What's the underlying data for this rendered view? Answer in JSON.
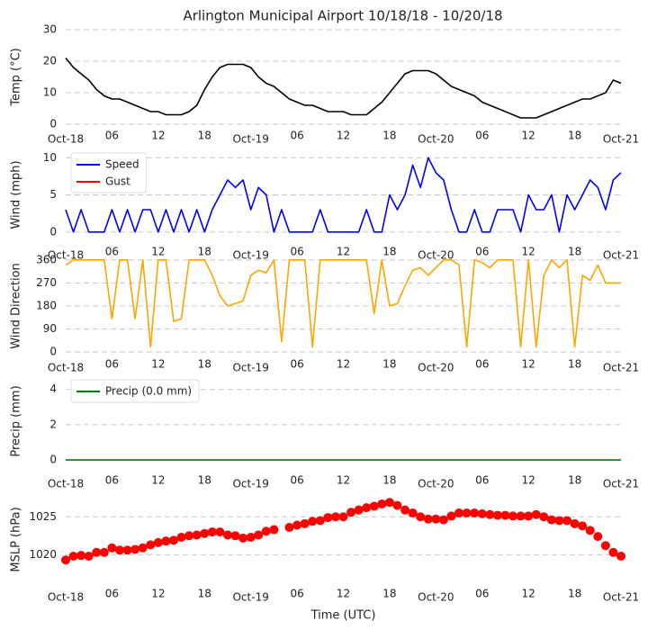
{
  "chart_data": [
    {
      "type": "line",
      "title": "Arlington Municipal Airport 10/18/18 - 10/20/18",
      "ylabel": "Temp ($^\\circ$C)",
      "xlim": [
        0,
        72
      ],
      "xticks": [
        {
          "value": 0,
          "label": "Oct-18"
        },
        {
          "value": 6,
          "label": "06"
        },
        12,
        18,
        {
          "value": 24,
          "label": "Oct-19"
        },
        {
          "value": 30,
          "label": "06"
        },
        {
          "value": 36,
          "label": "12"
        },
        {
          "value": 42,
          "label": "18"
        },
        {
          "value": 48,
          "label": "Oct-20"
        },
        {
          "value": 54,
          "label": "06"
        },
        {
          "value": 60,
          "label": "12"
        },
        {
          "value": 66,
          "label": "18"
        },
        {
          "value": 72,
          "label": "Oct-21"
        }
      ],
      "ylim": [
        0,
        30
      ],
      "yticks": [
        0,
        10,
        20,
        30
      ],
      "grid": true,
      "x": [
        0,
        1,
        2,
        3,
        4,
        5,
        6,
        7,
        8,
        9,
        10,
        11,
        12,
        13,
        14,
        15,
        16,
        17,
        18,
        19,
        20,
        21,
        22,
        23,
        24,
        25,
        26,
        27,
        28,
        29,
        30,
        31,
        32,
        33,
        34,
        35,
        36,
        37,
        38,
        39,
        40,
        41,
        42,
        43,
        44,
        45,
        46,
        47,
        48,
        49,
        50,
        51,
        52,
        53,
        54,
        55,
        56,
        57,
        58,
        59,
        60,
        61,
        62,
        63,
        64,
        65,
        66,
        67,
        68,
        69,
        70,
        71,
        72
      ],
      "series": [
        {
          "color": "#000000",
          "values": [
            21,
            18,
            16,
            14,
            11,
            9,
            8,
            8,
            7,
            6,
            5,
            4,
            4,
            3,
            3,
            3,
            4,
            6,
            11,
            15,
            18,
            19,
            19,
            19,
            18,
            15,
            13,
            12,
            10,
            8,
            7,
            6,
            6,
            5,
            4,
            4,
            4,
            3,
            3,
            3,
            5,
            7,
            10,
            13,
            16,
            17,
            17,
            17,
            16,
            14,
            12,
            11,
            10,
            9,
            7,
            6,
            5,
            4,
            3,
            2,
            2,
            2,
            3,
            4,
            5,
            6,
            7,
            8,
            8,
            9,
            10,
            14,
            13
          ]
        }
      ]
    },
    {
      "type": "line",
      "ylabel": "Wind (mph)",
      "legend": "upper left",
      "xlim": [
        0,
        72
      ],
      "xticks": [
        {
          "value": 0,
          "label": "Oct-18"
        },
        {
          "value": 6,
          "label": "06"
        },
        12,
        18,
        {
          "value": 24,
          "label": "Oct-19"
        },
        {
          "value": 30,
          "label": "06"
        },
        {
          "value": 36,
          "label": "12"
        },
        {
          "value": 42,
          "label": "18"
        },
        {
          "value": 48,
          "label": "Oct-20"
        },
        {
          "value": 54,
          "label": "06"
        },
        {
          "value": 60,
          "label": "12"
        },
        {
          "value": 66,
          "label": "18"
        },
        {
          "value": 72,
          "label": "Oct-21"
        }
      ],
      "ylim": [
        -1,
        11
      ],
      "yticks": [
        0,
        5,
        10
      ],
      "grid": true,
      "x": [
        0,
        1,
        2,
        3,
        4,
        5,
        6,
        7,
        8,
        9,
        10,
        11,
        12,
        13,
        14,
        15,
        16,
        17,
        18,
        19,
        20,
        21,
        22,
        23,
        24,
        25,
        26,
        27,
        28,
        29,
        30,
        31,
        32,
        33,
        34,
        35,
        36,
        37,
        38,
        39,
        40,
        41,
        42,
        43,
        44,
        45,
        46,
        47,
        48,
        49,
        50,
        51,
        52,
        53,
        54,
        55,
        56,
        57,
        58,
        59,
        60,
        61,
        62,
        63,
        64,
        65,
        66,
        67,
        68,
        69,
        70,
        71,
        72
      ],
      "series": [
        {
          "name": "Speed",
          "color": "#0000ff",
          "values": [
            3,
            0,
            3,
            0,
            0,
            0,
            3,
            0,
            3,
            0,
            3,
            3,
            0,
            3,
            0,
            3,
            0,
            3,
            0,
            3,
            5,
            7,
            6,
            7,
            3,
            6,
            5,
            0,
            3,
            0,
            0,
            0,
            0,
            3,
            0,
            0,
            0,
            0,
            0,
            3,
            0,
            0,
            5,
            3,
            5,
            9,
            6,
            10,
            8,
            7,
            3,
            0,
            0,
            3,
            0,
            0,
            3,
            3,
            3,
            0,
            5,
            3,
            3,
            5,
            0,
            5,
            3,
            5,
            7,
            6,
            3,
            7,
            8
          ]
        },
        {
          "name": "Gust",
          "color": "#ff0000",
          "values": [
            null,
            null,
            null,
            null,
            null,
            null,
            null,
            null,
            null,
            null,
            null,
            null,
            null,
            null,
            null,
            null,
            null,
            null,
            null,
            null,
            null,
            null,
            null,
            null,
            null,
            null,
            null,
            null,
            null,
            null,
            null,
            null,
            null,
            null,
            null,
            null,
            null,
            null,
            null,
            null,
            null,
            null,
            null,
            null,
            null,
            null,
            null,
            null,
            null,
            null,
            null,
            null,
            null,
            null,
            null,
            null,
            null,
            null,
            null,
            null,
            null,
            null,
            null,
            null,
            null,
            null,
            null,
            null,
            null,
            null,
            null,
            null,
            null
          ]
        }
      ]
    },
    {
      "type": "line",
      "ylabel": "Wind Direction",
      "xlim": [
        0,
        72
      ],
      "xticks": [
        {
          "value": 0,
          "label": "Oct-18"
        },
        {
          "value": 6,
          "label": "06"
        },
        12,
        18,
        {
          "value": 24,
          "label": "Oct-19"
        },
        {
          "value": 30,
          "label": "06"
        },
        {
          "value": 36,
          "label": "12"
        },
        {
          "value": 42,
          "label": "18"
        },
        {
          "value": 48,
          "label": "Oct-20"
        },
        {
          "value": 54,
          "label": "06"
        },
        {
          "value": 60,
          "label": "12"
        },
        {
          "value": 66,
          "label": "18"
        },
        {
          "value": 72,
          "label": "Oct-21"
        }
      ],
      "ylim": [
        -10,
        370
      ],
      "yticks": [
        0,
        90,
        180,
        270,
        360
      ],
      "grid": true,
      "x": [
        0,
        1,
        2,
        3,
        4,
        5,
        6,
        7,
        8,
        9,
        10,
        11,
        12,
        13,
        14,
        15,
        16,
        17,
        18,
        19,
        20,
        21,
        22,
        23,
        24,
        25,
        26,
        27,
        28,
        29,
        30,
        31,
        32,
        33,
        34,
        35,
        36,
        37,
        38,
        39,
        40,
        41,
        42,
        43,
        44,
        45,
        46,
        47,
        48,
        49,
        50,
        51,
        52,
        53,
        54,
        55,
        56,
        57,
        58,
        59,
        60,
        61,
        62,
        63,
        64,
        65,
        66,
        67,
        68,
        69,
        70,
        71,
        72
      ],
      "series": [
        {
          "color": "#ffa500",
          "values": [
            340,
            360,
            360,
            360,
            360,
            360,
            130,
            360,
            360,
            130,
            360,
            20,
            360,
            360,
            120,
            130,
            360,
            360,
            360,
            300,
            220,
            180,
            190,
            200,
            300,
            320,
            310,
            360,
            40,
            360,
            360,
            360,
            20,
            360,
            360,
            360,
            360,
            360,
            360,
            360,
            150,
            360,
            180,
            190,
            260,
            320,
            330,
            300,
            330,
            360,
            360,
            340,
            20,
            360,
            350,
            330,
            360,
            360,
            360,
            20,
            360,
            20,
            300,
            360,
            330,
            360,
            20,
            300,
            280,
            340,
            270,
            270,
            270
          ]
        }
      ]
    },
    {
      "type": "line",
      "ylabel": "Precip (mm)",
      "legend": "upper left",
      "xlim": [
        0,
        72
      ],
      "xticks": [
        {
          "value": 0,
          "label": "Oct-18"
        },
        {
          "value": 6,
          "label": "06"
        },
        12,
        18,
        {
          "value": 24,
          "label": "Oct-19"
        },
        {
          "value": 30,
          "label": "06"
        },
        {
          "value": 36,
          "label": "12"
        },
        {
          "value": 42,
          "label": "18"
        },
        {
          "value": 48,
          "label": "Oct-20"
        },
        {
          "value": 54,
          "label": "06"
        },
        {
          "value": 60,
          "label": "12"
        },
        {
          "value": 66,
          "label": "18"
        },
        {
          "value": 72,
          "label": "Oct-21"
        }
      ],
      "ylim": [
        -0.3,
        4.7
      ],
      "yticks": [
        0,
        2,
        4
      ],
      "grid": true,
      "x": [
        0,
        1,
        2,
        3,
        4,
        5,
        6,
        7,
        8,
        9,
        10,
        11,
        12,
        13,
        14,
        15,
        16,
        17,
        18,
        19,
        20,
        21,
        22,
        23,
        24,
        25,
        26,
        27,
        28,
        29,
        30,
        31,
        32,
        33,
        34,
        35,
        36,
        37,
        38,
        39,
        40,
        41,
        42,
        43,
        44,
        45,
        46,
        47,
        48,
        49,
        50,
        51,
        52,
        53,
        54,
        55,
        56,
        57,
        58,
        59,
        60,
        61,
        62,
        63,
        64,
        65,
        66,
        67,
        68,
        69,
        70,
        71,
        72
      ],
      "series": [
        {
          "name": "Precip (0.0 mm)",
          "color": "#008000",
          "values": [
            0,
            0,
            0,
            0,
            0,
            0,
            0,
            0,
            0,
            0,
            0,
            0,
            0,
            0,
            0,
            0,
            0,
            0,
            0,
            0,
            0,
            0,
            0,
            0,
            0,
            0,
            0,
            0,
            0,
            0,
            0,
            0,
            0,
            0,
            0,
            0,
            0,
            0,
            0,
            0,
            0,
            0,
            0,
            0,
            0,
            0,
            0,
            0,
            0,
            0,
            0,
            0,
            0,
            0,
            0,
            0,
            0,
            0,
            0,
            0,
            0,
            0,
            0,
            0,
            0,
            0,
            0,
            0,
            0,
            0,
            0,
            0,
            0
          ]
        }
      ]
    },
    {
      "type": "scatter",
      "ylabel": "MSLP (hPa)",
      "xlabel": "Time (UTC)",
      "xlim": [
        0,
        72
      ],
      "xticks": [
        {
          "value": 0,
          "label": "Oct-18"
        },
        {
          "value": 6,
          "label": "06"
        },
        12,
        18,
        {
          "value": 24,
          "label": "Oct-19"
        },
        {
          "value": 30,
          "label": "06"
        },
        {
          "value": 36,
          "label": "12"
        },
        {
          "value": 42,
          "label": "18"
        },
        {
          "value": 48,
          "label": "Oct-20"
        },
        {
          "value": 54,
          "label": "06"
        },
        {
          "value": 60,
          "label": "12"
        },
        {
          "value": 66,
          "label": "18"
        },
        {
          "value": 72,
          "label": "Oct-21"
        }
      ],
      "ylim": [
        1016,
        1028
      ],
      "yticks": [
        1020,
        1025
      ],
      "grid": true,
      "x": [
        0,
        1,
        2,
        3,
        4,
        5,
        6,
        7,
        8,
        9,
        10,
        11,
        12,
        13,
        14,
        15,
        16,
        17,
        18,
        19,
        20,
        21,
        22,
        23,
        24,
        25,
        26,
        27,
        28,
        29,
        30,
        31,
        32,
        33,
        34,
        35,
        36,
        37,
        38,
        39,
        40,
        41,
        42,
        43,
        44,
        45,
        46,
        47,
        48,
        49,
        50,
        51,
        52,
        53,
        54,
        55,
        56,
        57,
        58,
        59,
        60,
        61,
        62,
        63,
        64,
        65,
        66,
        67,
        68,
        69,
        70,
        71,
        72
      ],
      "series": [
        {
          "color": "#ff0000",
          "values": [
            1019.3,
            1019.8,
            1019.9,
            1019.8,
            1020.3,
            1020.3,
            1020.9,
            1020.6,
            1020.6,
            1020.7,
            1020.9,
            1021.3,
            1021.6,
            1021.8,
            1021.9,
            1022.3,
            1022.5,
            1022.6,
            1022.8,
            1023.0,
            1023.0,
            1022.6,
            1022.5,
            1022.2,
            1022.3,
            1022.6,
            1023.1,
            1023.3,
            null,
            1023.6,
            1023.9,
            1024.1,
            1024.4,
            1024.5,
            1024.9,
            1025.0,
            1025.0,
            1025.6,
            1025.9,
            1026.2,
            1026.4,
            1026.7,
            1026.9,
            1026.5,
            1025.9,
            1025.5,
            1025.0,
            1024.7,
            1024.7,
            1024.6,
            1025.1,
            1025.5,
            1025.5,
            1025.5,
            1025.4,
            1025.3,
            1025.2,
            1025.2,
            1025.1,
            1025.1,
            1025.1,
            1025.3,
            1025.0,
            1024.6,
            1024.5,
            1024.5,
            1024.1,
            1023.8,
            1023.2,
            1022.4,
            1021.2,
            1020.3,
            1019.8
          ]
        }
      ]
    }
  ]
}
